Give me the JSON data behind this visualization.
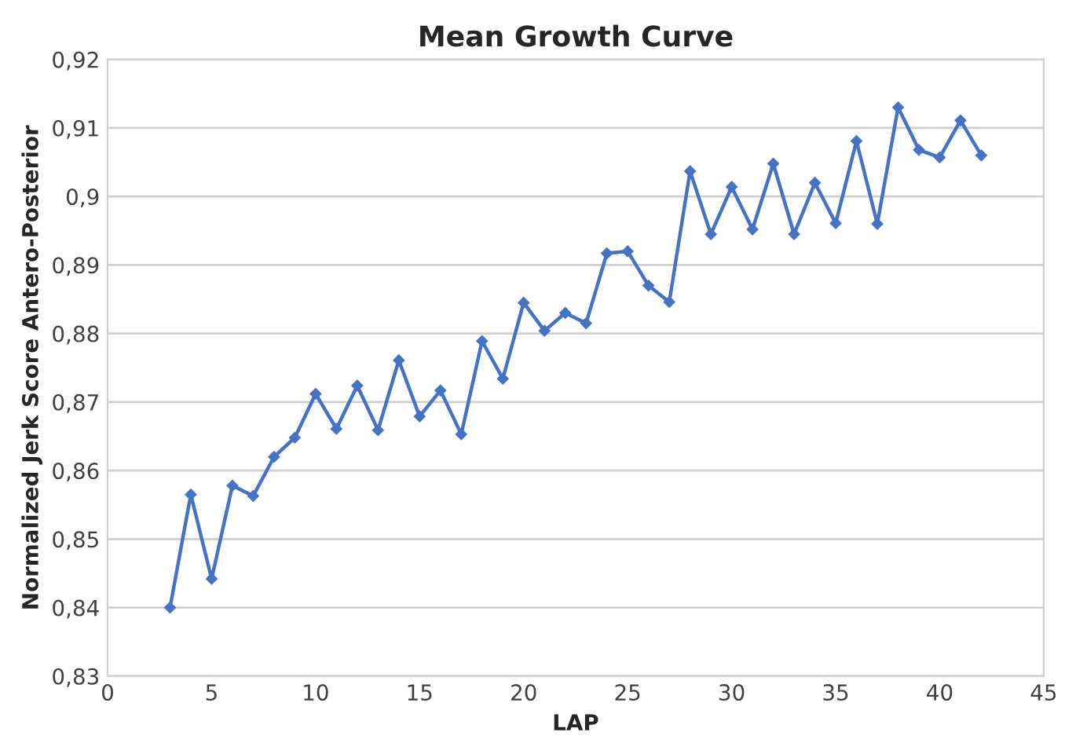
{
  "chart_data": {
    "type": "line",
    "title": "Mean Growth Curve",
    "xlabel": "LAP",
    "ylabel": "Normalized Jerk Score Antero-Posterior",
    "x": [
      3,
      4,
      5,
      6,
      7,
      8,
      9,
      10,
      11,
      12,
      13,
      14,
      15,
      16,
      17,
      18,
      19,
      20,
      21,
      22,
      23,
      24,
      25,
      26,
      27,
      28,
      29,
      30,
      31,
      32,
      33,
      34,
      35,
      36,
      37,
      38,
      39,
      40,
      41,
      42
    ],
    "series": [
      {
        "color": "#4472c4",
        "values": [
          0.84,
          0.8565,
          0.8442,
          0.8578,
          0.8563,
          0.862,
          0.8648,
          0.8712,
          0.8661,
          0.8724,
          0.8659,
          0.8761,
          0.8679,
          0.8717,
          0.8653,
          0.8789,
          0.8734,
          0.8845,
          0.8804,
          0.883,
          0.8815,
          0.8917,
          0.892,
          0.887,
          0.8846,
          0.9037,
          0.8945,
          0.9014,
          0.8952,
          0.9048,
          0.8945,
          0.902,
          0.8961,
          0.9081,
          0.896,
          0.913,
          0.9068,
          0.9057,
          0.9111,
          0.906
        ]
      }
    ],
    "xlim": [
      0,
      45
    ],
    "xticks": [
      0,
      5,
      10,
      15,
      20,
      25,
      30,
      35,
      40,
      45
    ],
    "ylim": [
      0.83,
      0.92
    ],
    "yticks": [
      {
        "value": 0.83,
        "label": "0,83"
      },
      {
        "value": 0.84,
        "label": "0,84"
      },
      {
        "value": 0.85,
        "label": "0,85"
      },
      {
        "value": 0.86,
        "label": "0,86"
      },
      {
        "value": 0.87,
        "label": "0,87"
      },
      {
        "value": 0.88,
        "label": "0,88"
      },
      {
        "value": 0.89,
        "label": "0,89"
      },
      {
        "value": 0.9,
        "label": "0,9"
      },
      {
        "value": 0.91,
        "label": "0,91"
      },
      {
        "value": 0.92,
        "label": "0,92"
      }
    ],
    "grid": "y",
    "marker": "diamond",
    "line_style": "solid"
  }
}
